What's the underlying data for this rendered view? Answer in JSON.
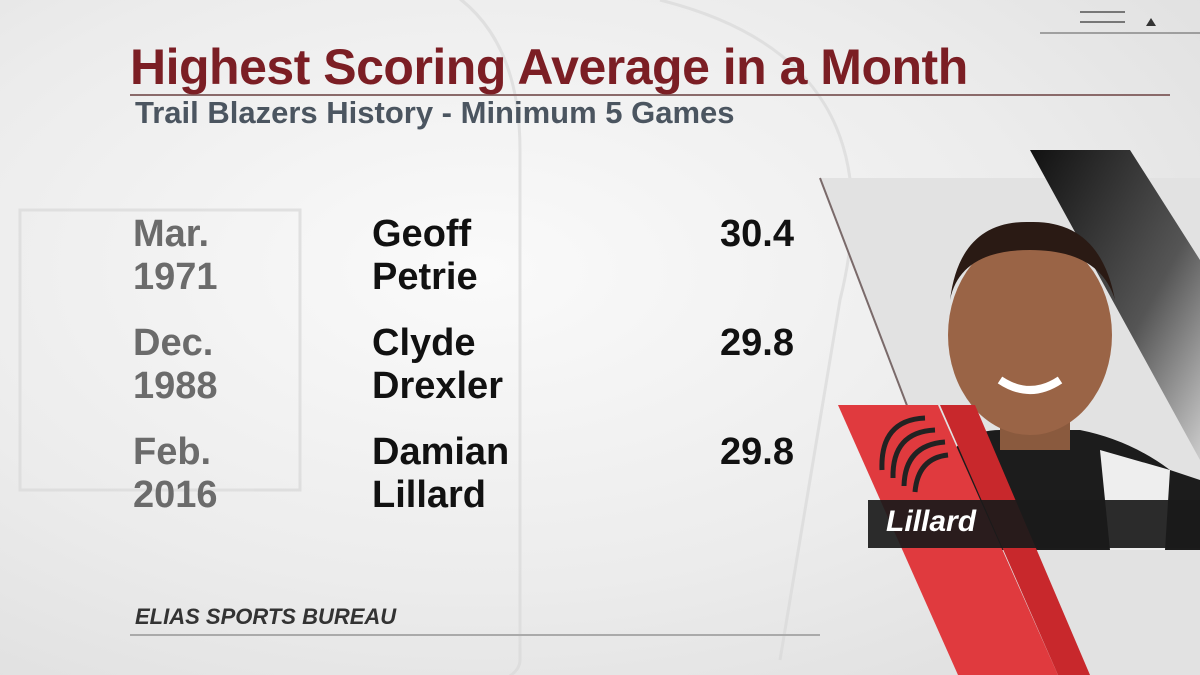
{
  "header": {
    "title": "Highest Scoring Average in a Month",
    "subtitle": "Trail Blazers History - Minimum 5 Games"
  },
  "table": {
    "rows": [
      [
        "Mar. 1971",
        "Geoff Petrie",
        30.4
      ],
      [
        "Dec. 1988",
        "Clyde Drexler",
        29.8
      ],
      [
        "Feb. 2016",
        "Damian Lillard",
        29.8
      ]
    ]
  },
  "player_card": {
    "name": "Lillard"
  },
  "footer": {
    "source": "ELIAS SPORTS BUREAU"
  }
}
